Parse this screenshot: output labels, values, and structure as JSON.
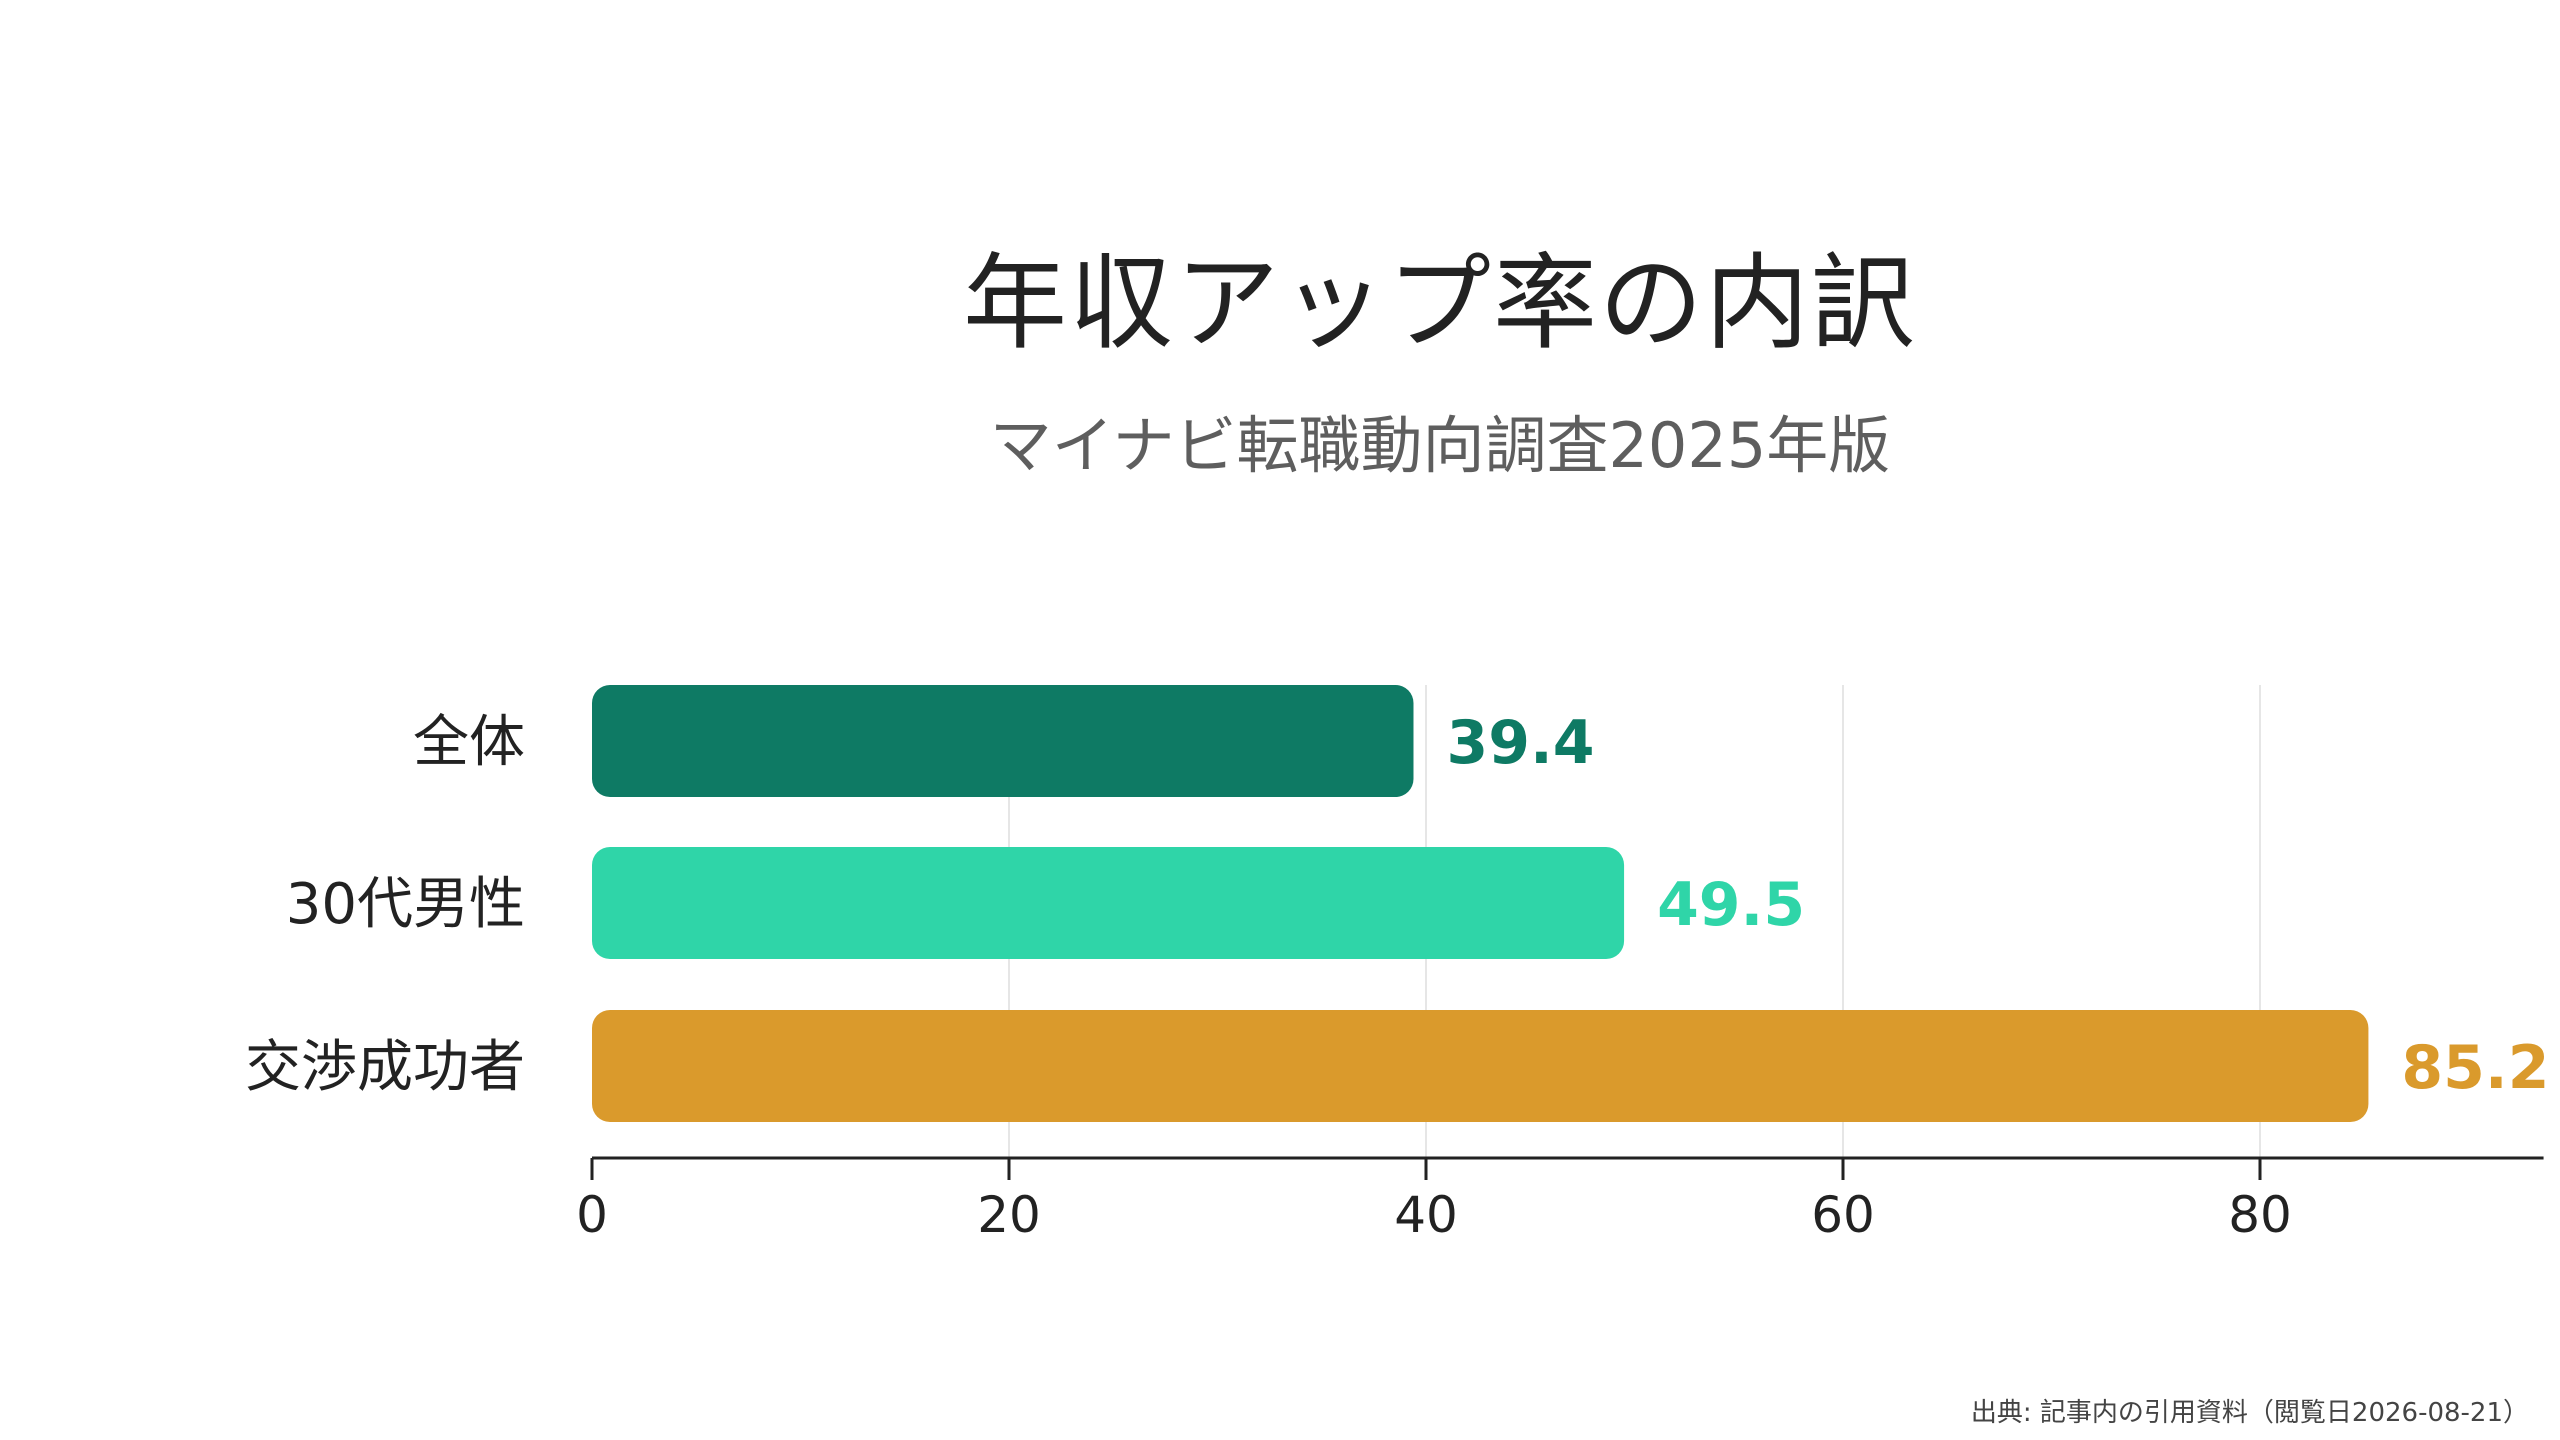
{
  "title": "年収アップ率の内訳",
  "subtitle": "マイナビ転職動向調査2025年版",
  "source": "出典: 記事内の引用資料（閲覧日2026-08-21）",
  "chart_data": {
    "type": "bar",
    "orientation": "horizontal",
    "categories": [
      "全体",
      "30代男性",
      "交渉成功者"
    ],
    "values": [
      39.4,
      49.5,
      85.2
    ],
    "value_labels": [
      "39.4",
      "49.5",
      "85.2"
    ],
    "colors": [
      "#0e7a64",
      "#2fd5a8",
      "#da9a2c"
    ],
    "xlim": [
      0,
      93.6
    ],
    "xticks": [
      0,
      20,
      40,
      60,
      80
    ],
    "grid": true,
    "legend": "none"
  }
}
